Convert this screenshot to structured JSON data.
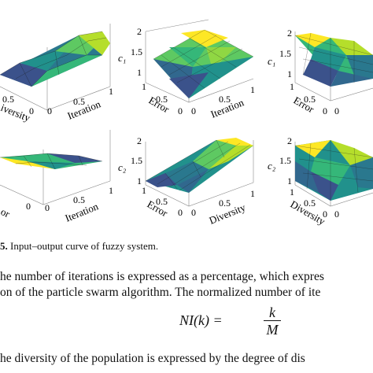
{
  "caption": {
    "label": "5.",
    "text": " Input–output curve of fuzzy system."
  },
  "paragraph": {
    "line1": "he number of iterations is expressed as a percentage, which expres",
    "line2": "on of the particle swarm algorithm. The normalized number of ite",
    "line3": "he diversity of the population is expressed by the degree of dis"
  },
  "equation": {
    "lhs": "NI(k) =",
    "numerator": "k",
    "denominator": "M"
  },
  "plots": [
    {
      "id": "top-left",
      "z_label": "",
      "y_label": "iversity",
      "x_label": "Iteration",
      "z_ticks": [],
      "x_ticks": [
        "0.5",
        "1"
      ],
      "y_ticks": [
        "0.5",
        "0"
      ],
      "x0_tick": "0"
    },
    {
      "id": "top-middle",
      "z_label": "c₁",
      "y_label": "Error",
      "x_label": "Iteration",
      "z_ticks": [
        "2",
        "1.5",
        "1"
      ],
      "x_ticks": [
        "0.5",
        "1"
      ],
      "y_ticks": [
        "1",
        "0.5",
        "0"
      ],
      "x0_tick": "0"
    },
    {
      "id": "top-right",
      "z_label": "c₁",
      "y_label": "Error",
      "x_label": "",
      "z_ticks": [
        "2",
        "1.5",
        "1"
      ],
      "x_ticks": [],
      "y_ticks": [
        "1",
        "0.5",
        "0"
      ],
      "x0_tick": "0"
    },
    {
      "id": "bottom-left",
      "z_label": "",
      "y_label": "or",
      "x_label": "Iteration",
      "z_ticks": [],
      "x_ticks": [
        "0.5",
        "1"
      ],
      "y_ticks": [
        "0"
      ],
      "x0_tick": "0"
    },
    {
      "id": "bottom-middle",
      "z_label": "c₂",
      "y_label": "Error",
      "x_label": "Diversity",
      "z_ticks": [
        "2",
        "1.5",
        "1"
      ],
      "x_ticks": [
        "0.5",
        "1"
      ],
      "y_ticks": [
        "1",
        "0.5",
        "0"
      ],
      "x0_tick": "0"
    },
    {
      "id": "bottom-right",
      "z_label": "c₂",
      "y_label": "Diversity",
      "x_label": "",
      "z_ticks": [
        "2",
        "1.5",
        "1"
      ],
      "x_ticks": [],
      "y_ticks": [
        "1",
        "0.5",
        "0"
      ],
      "x0_tick": "0"
    }
  ]
}
